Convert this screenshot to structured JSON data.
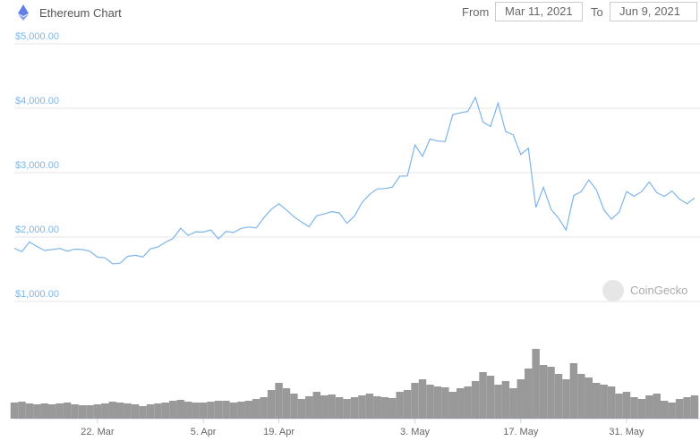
{
  "chart_data": {
    "type": "line",
    "title": "Ethereum Chart",
    "from_label": "From",
    "from_date": "Mar 11, 2021",
    "to_label": "To",
    "to_date": "Jun 9, 2021",
    "watermark": "CoinGecko",
    "categories": [
      null,
      null,
      null,
      null,
      null,
      null,
      null,
      null,
      null,
      null,
      null,
      "22. Mar",
      null,
      null,
      null,
      null,
      null,
      null,
      null,
      null,
      null,
      null,
      null,
      null,
      null,
      "5. Apr",
      null,
      null,
      null,
      null,
      null,
      null,
      null,
      null,
      null,
      "19. Apr",
      null,
      null,
      null,
      null,
      null,
      null,
      null,
      null,
      null,
      null,
      null,
      null,
      null,
      null,
      null,
      null,
      null,
      "3. May",
      null,
      null,
      null,
      null,
      null,
      null,
      null,
      null,
      null,
      null,
      null,
      null,
      null,
      "17. May",
      null,
      null,
      null,
      null,
      null,
      null,
      null,
      null,
      null,
      null,
      null,
      null,
      null,
      "31. May",
      null,
      null,
      null,
      null,
      null,
      null,
      null,
      null,
      null
    ],
    "series": [
      {
        "name": "Price",
        "type": "line",
        "color": "#7cb5ec",
        "values": [
          1826,
          1772,
          1924,
          1854,
          1792,
          1806,
          1823,
          1782,
          1811,
          1806,
          1780,
          1688,
          1678,
          1585,
          1594,
          1701,
          1716,
          1690,
          1817,
          1846,
          1919,
          1978,
          2138,
          2025,
          2082,
          2077,
          2110,
          1972,
          2086,
          2071,
          2135,
          2155,
          2141,
          2299,
          2432,
          2516,
          2419,
          2316,
          2232,
          2161,
          2330,
          2358,
          2396,
          2374,
          2214,
          2326,
          2535,
          2663,
          2747,
          2753,
          2773,
          2945,
          2948,
          3431,
          3253,
          3522,
          3490,
          3484,
          3902,
          3928,
          3952,
          4168,
          3785,
          3716,
          4079,
          3638,
          3587,
          3282,
          3379,
          2460,
          2772,
          2430,
          2295,
          2109,
          2643,
          2706,
          2888,
          2736,
          2419,
          2279,
          2386,
          2706,
          2634,
          2707,
          2855,
          2689,
          2630,
          2715,
          2590,
          2517,
          2608
        ]
      },
      {
        "name": "Volume",
        "type": "bar",
        "axis": "y2",
        "color": "#999999",
        "values": [
          18,
          19,
          17,
          16,
          17,
          16,
          17,
          18,
          16,
          15,
          15,
          16,
          17,
          19,
          18,
          17,
          16,
          14,
          16,
          17,
          18,
          20,
          21,
          19,
          18,
          18,
          19,
          20,
          20,
          18,
          19,
          20,
          22,
          24,
          32,
          40,
          34,
          28,
          22,
          25,
          30,
          26,
          27,
          24,
          22,
          24,
          26,
          28,
          25,
          24,
          23,
          30,
          32,
          40,
          44,
          38,
          36,
          35,
          30,
          34,
          36,
          42,
          52,
          48,
          38,
          42,
          34,
          44,
          56,
          78,
          60,
          58,
          50,
          44,
          62,
          50,
          46,
          40,
          38,
          36,
          28,
          30,
          24,
          22,
          26,
          28,
          20,
          18,
          22,
          24,
          26
        ]
      }
    ],
    "ylim": [
      1000,
      5000
    ],
    "yticks": [
      {
        "value": 1000,
        "label": "$1,000.00"
      },
      {
        "value": 2000,
        "label": "$2,000.00"
      },
      {
        "value": 3000,
        "label": "$3,000.00"
      },
      {
        "value": 4000,
        "label": "$4,000.00"
      },
      {
        "value": 5000,
        "label": "$5,000.00"
      }
    ],
    "y2lim": [
      0,
      80
    ],
    "grid": true
  }
}
